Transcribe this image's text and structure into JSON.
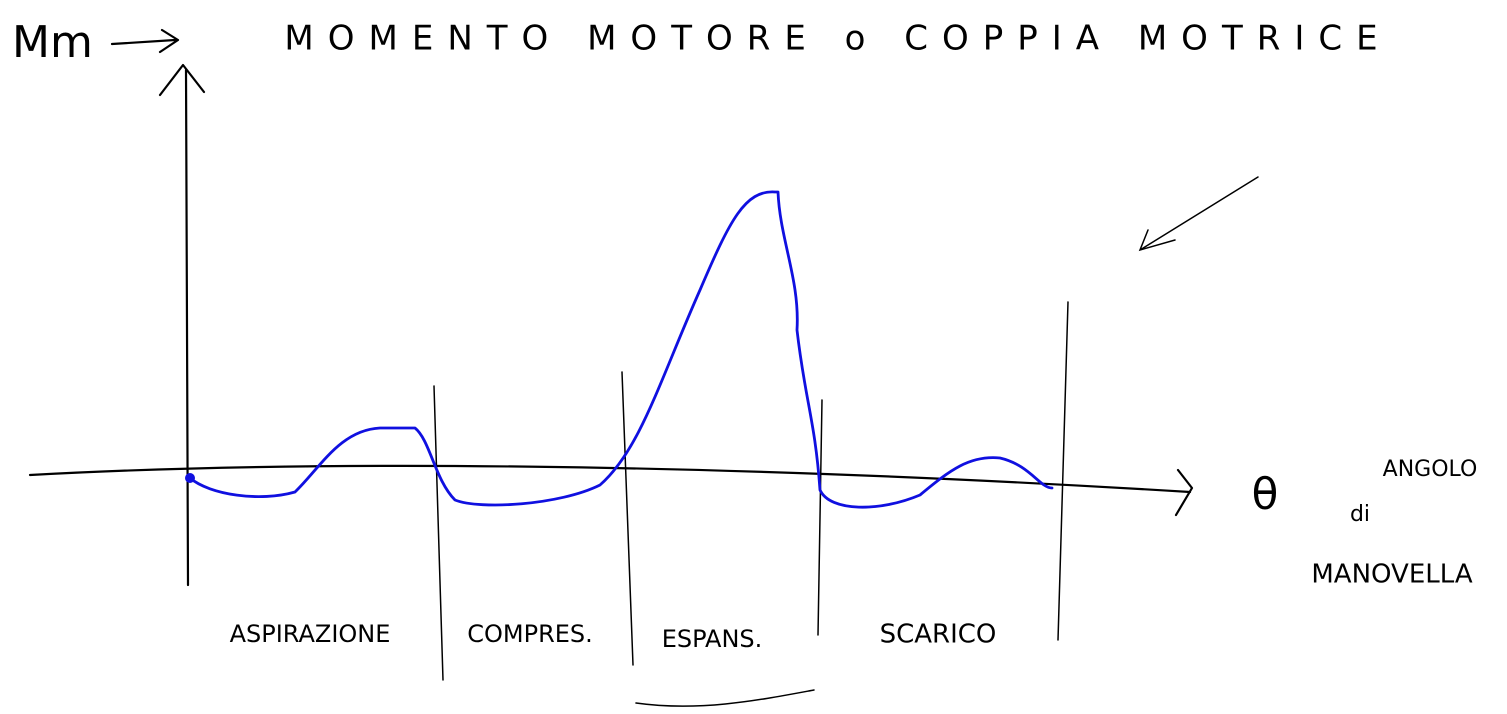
{
  "header": {
    "symbol": "Mm",
    "title": "MOMENTO MOTORE o COPPIA MOTRICE"
  },
  "x_axis": {
    "symbol": "θ",
    "label_line1": "ANGOLO",
    "label_line2": "di",
    "label_line3": "MANOVELLA"
  },
  "phases": [
    "ASPIRAZIONE",
    "COMPRES.",
    "ESPANS.",
    "SCARICO"
  ]
}
